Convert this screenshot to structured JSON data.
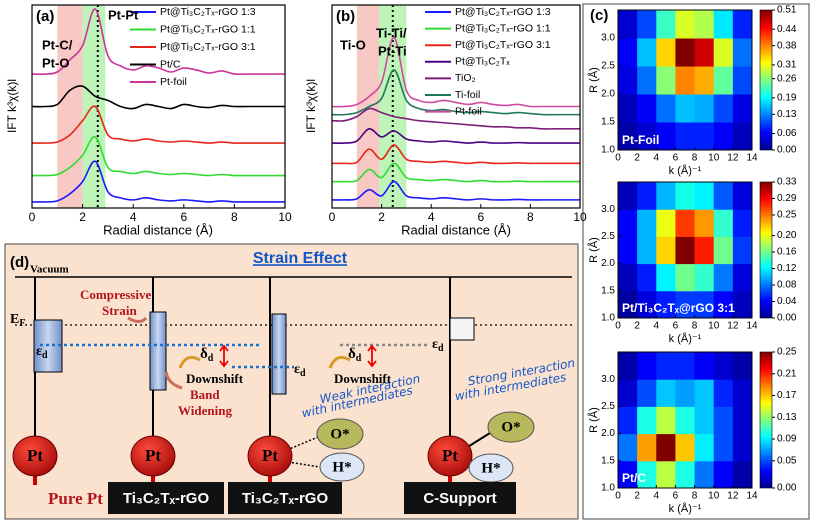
{
  "chart_data": [
    {
      "type": "line",
      "panel_label": "(a)",
      "x_label": "Radial distance (Å)",
      "y_label": "IFT k³χ(k)l",
      "x": [
        0,
        0.5,
        1,
        1.5,
        2,
        2.5,
        3,
        3.5,
        4,
        4.5,
        5,
        5.5,
        6,
        6.5,
        7,
        7.5,
        8,
        8.5,
        9,
        9.5,
        10
      ],
      "xlim": [
        0,
        10
      ],
      "xticks": [
        0,
        2,
        4,
        6,
        8,
        10
      ],
      "ylim": [
        0,
        10
      ],
      "regions": [
        {
          "x0": 1.0,
          "x1": 2.0,
          "color": "#f4b6b0"
        },
        {
          "x0": 2.0,
          "x1": 2.9,
          "color": "#a8f0a0"
        }
      ],
      "marker_x": 2.6,
      "annotations": [
        "Pt-C/",
        "Pt-O",
        "Pt-Pt"
      ],
      "series": [
        {
          "name": "Pt@Ti₃C₂Tₓ-rGO 1:3",
          "color": "#1a1aff",
          "values": [
            0.3,
            0.3,
            0.35,
            0.7,
            1.3,
            2.3,
            0.8,
            0.5,
            0.4,
            0.5,
            0.4,
            0.35,
            0.4,
            0.35,
            0.3,
            0.35,
            0.3,
            0.3,
            0.3,
            0.3,
            0.3
          ]
        },
        {
          "name": "Pt@Ti₃C₂Tₓ-rGO 1:1",
          "color": "#2edb2e",
          "values": [
            1.6,
            1.6,
            1.65,
            2.0,
            2.6,
            3.5,
            2.0,
            1.8,
            1.7,
            1.8,
            1.7,
            1.65,
            1.7,
            1.65,
            1.6,
            1.65,
            1.6,
            1.6,
            1.6,
            1.6,
            1.6
          ]
        },
        {
          "name": "Pt@Ti₃C₂Tₓ-rGO 3:1",
          "color": "#e8251a",
          "values": [
            3.2,
            3.2,
            3.25,
            3.6,
            4.3,
            5.0,
            3.6,
            3.4,
            3.3,
            3.4,
            3.3,
            3.25,
            3.3,
            3.25,
            3.2,
            3.25,
            3.2,
            3.2,
            3.2,
            3.2,
            3.2
          ]
        },
        {
          "name": "Pt/C",
          "color": "#000000",
          "values": [
            5.0,
            5.0,
            5.1,
            5.8,
            6.0,
            5.5,
            5.3,
            5.0,
            4.9,
            5.1,
            5.0,
            4.9,
            5.1,
            5.0,
            4.95,
            5.05,
            5.0,
            5.0,
            5.0,
            5.0,
            5.0
          ]
        },
        {
          "name": "Pt-foil",
          "color": "#cc3399",
          "values": [
            6.6,
            6.6,
            6.7,
            7.3,
            8.0,
            9.8,
            7.5,
            7.0,
            6.8,
            7.0,
            6.9,
            6.7,
            6.9,
            6.8,
            6.65,
            6.75,
            6.6,
            6.6,
            6.6,
            6.6,
            6.6
          ]
        }
      ]
    },
    {
      "type": "line",
      "panel_label": "(b)",
      "x_label": "Radial distance (Å)",
      "y_label": "IFT k³χ(k)l",
      "x": [
        0,
        0.5,
        1,
        1.5,
        2,
        2.5,
        3,
        3.5,
        4,
        4.5,
        5,
        5.5,
        6,
        6.5,
        7,
        7.5,
        8,
        8.5,
        9,
        9.5,
        10
      ],
      "xlim": [
        0,
        10
      ],
      "xticks": [
        0,
        2,
        4,
        6,
        8,
        10
      ],
      "ylim": [
        0,
        10
      ],
      "regions": [
        {
          "x0": 1.0,
          "x1": 1.9,
          "color": "#f4b6b0"
        },
        {
          "x0": 1.9,
          "x1": 3.0,
          "color": "#a8f0a0"
        }
      ],
      "marker_x": 2.45,
      "annotations": [
        "Ti-O",
        "Ti-Ti/",
        "Pt-Ti"
      ],
      "series": [
        {
          "name": "Pt@Ti₃C₂Tₓ-rGO 1:3",
          "color": "#1a1aff",
          "values": [
            0.4,
            0.4,
            0.45,
            0.9,
            0.6,
            1.3,
            0.6,
            0.5,
            0.45,
            0.5,
            0.45,
            0.4,
            0.45,
            0.4,
            0.4,
            0.42,
            0.4,
            0.4,
            0.4,
            0.4,
            0.4
          ]
        },
        {
          "name": "Pt@Ti₃C₂Tₓ-rGO 1:1",
          "color": "#2edb2e",
          "values": [
            1.3,
            1.3,
            1.35,
            1.9,
            1.5,
            2.2,
            1.5,
            1.4,
            1.35,
            1.4,
            1.35,
            1.3,
            1.35,
            1.3,
            1.3,
            1.32,
            1.3,
            1.3,
            1.3,
            1.3,
            1.3
          ]
        },
        {
          "name": "Pt@Ti₃C₂Tₓ-rGO 3:1",
          "color": "#e8251a",
          "values": [
            2.2,
            2.2,
            2.25,
            2.9,
            2.4,
            3.1,
            2.4,
            2.3,
            2.25,
            2.3,
            2.25,
            2.2,
            2.25,
            2.2,
            2.2,
            2.22,
            2.2,
            2.2,
            2.2,
            2.2,
            2.2
          ]
        },
        {
          "name": "Pt@Ti₃C₂Tₓ",
          "color": "#4b0082",
          "values": [
            3.2,
            3.2,
            3.3,
            3.9,
            3.5,
            3.8,
            3.4,
            3.3,
            3.25,
            3.3,
            3.25,
            3.2,
            3.25,
            3.2,
            3.2,
            3.22,
            3.2,
            3.2,
            3.2,
            3.2,
            3.2
          ]
        },
        {
          "name": "TiO₂",
          "color": "#7a1f7a",
          "values": [
            4.3,
            4.3,
            4.5,
            4.9,
            4.7,
            4.5,
            4.4,
            4.3,
            4.25,
            4.2,
            4.15,
            4.1,
            4.05,
            4.0,
            4.0,
            3.95,
            3.95,
            3.9,
            3.9,
            3.9,
            3.9
          ]
        },
        {
          "name": "Ti-foil",
          "color": "#1e7a5a",
          "values": [
            4.6,
            4.6,
            4.7,
            5.0,
            5.4,
            6.8,
            5.3,
            4.9,
            4.8,
            4.85,
            4.75,
            4.7,
            4.75,
            4.7,
            4.65,
            4.7,
            4.65,
            4.6,
            4.6,
            4.6,
            4.6
          ]
        },
        {
          "name": "Pt-foil",
          "color": "#d04aa0",
          "values": [
            5.0,
            5.0,
            5.1,
            5.5,
            6.2,
            8.4,
            5.8,
            5.3,
            5.2,
            5.3,
            5.2,
            5.1,
            5.2,
            5.1,
            5.05,
            5.1,
            5.0,
            5.0,
            5.0,
            5.0,
            5.0
          ]
        }
      ]
    },
    {
      "type": "heatmap",
      "panel_label": "(c)",
      "label": "Pt-Foil",
      "x_label": "k (Å)⁻¹",
      "y_label": "R (Å)",
      "x": [
        1,
        3,
        5,
        7,
        9,
        11,
        13
      ],
      "y": [
        1.25,
        1.75,
        2.25,
        2.75,
        3.25
      ],
      "xlim": [
        0,
        14
      ],
      "ylim": [
        1,
        3.5
      ],
      "xticks": [
        0,
        2,
        4,
        6,
        8,
        10,
        12,
        14
      ],
      "yticks": [
        {
          "value": 1,
          "label": "1.0"
        },
        1.5,
        {
          "value": 2,
          "label": "2.0"
        },
        2.5,
        {
          "value": 3,
          "label": "3.0"
        }
      ],
      "zlim": [
        0,
        0.51
      ],
      "zticks": [
        {
          "value": 0,
          "label": "0.00"
        },
        0.06,
        0.13,
        0.19,
        0.26,
        0.31,
        0.38,
        0.44,
        0.51
      ],
      "z": [
        [
          0.02,
          0.04,
          0.06,
          0.08,
          0.08,
          0.06,
          0.03
        ],
        [
          0.03,
          0.06,
          0.12,
          0.16,
          0.15,
          0.1,
          0.05
        ],
        [
          0.05,
          0.12,
          0.26,
          0.38,
          0.36,
          0.24,
          0.1
        ],
        [
          0.06,
          0.16,
          0.34,
          0.51,
          0.47,
          0.3,
          0.12
        ],
        [
          0.04,
          0.1,
          0.22,
          0.3,
          0.28,
          0.18,
          0.08
        ]
      ]
    },
    {
      "type": "heatmap",
      "label": "Pt/Ti₃C₂Tₓ@rGO 3:1",
      "x_label": "k (Å)⁻¹",
      "y_label": "R (Å)",
      "x": [
        1,
        3,
        5,
        7,
        9,
        11,
        13
      ],
      "y": [
        1.25,
        1.75,
        2.25,
        2.75,
        3.25
      ],
      "xlim": [
        0,
        14
      ],
      "ylim": [
        1,
        3.5
      ],
      "xticks": [
        0,
        2,
        4,
        6,
        8,
        10,
        12,
        14
      ],
      "yticks": [
        {
          "value": 1,
          "label": "1.0"
        },
        1.5,
        {
          "value": 2,
          "label": "2.0"
        },
        2.5,
        {
          "value": 3,
          "label": "3.0"
        }
      ],
      "zlim": [
        0,
        0.33
      ],
      "zticks": [
        {
          "value": 0,
          "label": "0.00"
        },
        0.04,
        0.08,
        0.12,
        0.16,
        {
          "value": 0.2,
          "label": "0.20"
        },
        0.25,
        0.29,
        0.33
      ],
      "z": [
        [
          0.01,
          0.03,
          0.05,
          0.06,
          0.06,
          0.04,
          0.02
        ],
        [
          0.02,
          0.05,
          0.12,
          0.16,
          0.14,
          0.08,
          0.03
        ],
        [
          0.04,
          0.1,
          0.22,
          0.33,
          0.28,
          0.16,
          0.06
        ],
        [
          0.04,
          0.1,
          0.2,
          0.27,
          0.24,
          0.14,
          0.05
        ],
        [
          0.02,
          0.05,
          0.1,
          0.13,
          0.12,
          0.07,
          0.03
        ]
      ]
    },
    {
      "type": "heatmap",
      "label": "Pt/C",
      "x_label": "k (Å)⁻¹",
      "y_label": "R (Å)",
      "x": [
        1,
        3,
        5,
        7,
        9,
        11,
        13
      ],
      "y": [
        1.25,
        1.75,
        2.25,
        2.75,
        3.25
      ],
      "xlim": [
        0,
        14
      ],
      "ylim": [
        1,
        3.5
      ],
      "xticks": [
        0,
        2,
        4,
        6,
        8,
        10,
        12,
        14
      ],
      "yticks": [
        {
          "value": 1,
          "label": "1.0"
        },
        1.5,
        {
          "value": 2,
          "label": "2.0"
        },
        2.5,
        {
          "value": 3,
          "label": "3.0"
        }
      ],
      "zlim": [
        0,
        0.25
      ],
      "zticks": [
        {
          "value": 0,
          "label": "0.00"
        },
        0.05,
        0.09,
        0.13,
        0.17,
        0.21,
        0.25
      ],
      "z": [
        [
          0.03,
          0.1,
          0.14,
          0.1,
          0.06,
          0.03,
          0.01
        ],
        [
          0.06,
          0.18,
          0.25,
          0.17,
          0.09,
          0.05,
          0.02
        ],
        [
          0.04,
          0.1,
          0.14,
          0.1,
          0.08,
          0.05,
          0.02
        ],
        [
          0.02,
          0.05,
          0.08,
          0.07,
          0.08,
          0.04,
          0.02
        ],
        [
          0.01,
          0.03,
          0.04,
          0.04,
          0.03,
          0.02,
          0.01
        ]
      ]
    }
  ],
  "diagram": {
    "panel_label": "(d)",
    "title": "Strain Effect",
    "vacuum": "Vacuum",
    "fermi": {
      "main": "E",
      "sub": "F"
    },
    "epsilon": {
      "main": "ε",
      "sub": "d"
    },
    "delta": {
      "main": "δ",
      "sub": "d"
    },
    "compressive": [
      "Compressive",
      "Strain"
    ],
    "band_widening": [
      "Band",
      "Widening"
    ],
    "downshift": "Downshift",
    "weak": [
      "Weak interaction",
      "with intermediates"
    ],
    "strong": [
      "Strong interaction",
      "with intermediates"
    ],
    "pt": "Pt",
    "o": "O*",
    "h": "H*",
    "supports": [
      "Pure Pt",
      "Ti₃C₂Tₓ-rGO",
      "Ti₃C₂Tₓ-rGO",
      "C-Support"
    ]
  }
}
